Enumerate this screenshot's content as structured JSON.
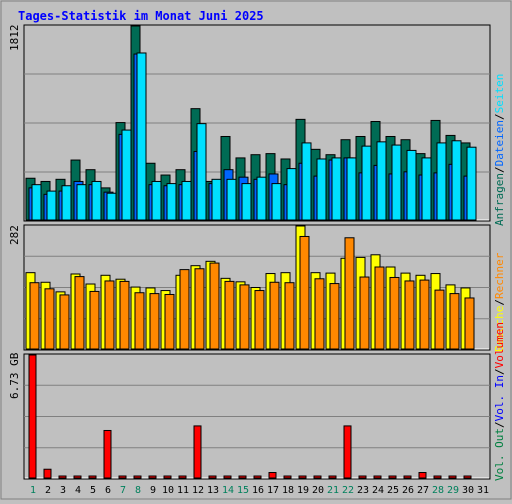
{
  "title": "Tages-Statistik im Monat Juni 2025",
  "axis_max_labels": {
    "top": "1812",
    "middle": "282",
    "bottom": "6.73 GB"
  },
  "right_legend": {
    "top": [
      {
        "text": "Anfragen",
        "color": "#006b54"
      },
      {
        "text": "/",
        "color": "#000000"
      },
      {
        "text": "Dateien",
        "color": "#0066ff"
      },
      {
        "text": "/",
        "color": "#000000"
      },
      {
        "text": "Seiten",
        "color": "#00e0ff"
      }
    ],
    "middle": [
      {
        "text": "Besuche",
        "color": "#ffff00"
      },
      {
        "text": "/",
        "color": "#000000"
      },
      {
        "text": "Rechner",
        "color": "#ff8800"
      }
    ],
    "bottom": [
      {
        "text": "Vol. Out",
        "color": "#008040"
      },
      {
        "text": "/",
        "color": "#000000"
      },
      {
        "text": "Vol. In",
        "color": "#0000ff"
      },
      {
        "text": "/",
        "color": "#000000"
      },
      {
        "text": "Volumen",
        "color": "#ff0000"
      }
    ]
  },
  "colors": {
    "background": "#c0c0c0",
    "title": "#0000ff",
    "weekend_day": "#00805c",
    "weekday": "#000000",
    "grid": "#808080"
  },
  "chart_data": {
    "type": "bar",
    "days": [
      "1",
      "2",
      "3",
      "4",
      "5",
      "6",
      "7",
      "8",
      "9",
      "10",
      "11",
      "12",
      "13",
      "14",
      "15",
      "16",
      "17",
      "18",
      "19",
      "20",
      "21",
      "22",
      "23",
      "24",
      "25",
      "26",
      "27",
      "28",
      "29",
      "30",
      "31"
    ],
    "weekend_days": [
      1,
      7,
      8,
      14,
      15,
      21,
      22,
      28,
      29
    ],
    "panels": [
      {
        "name": "requests",
        "ylim": [
          0,
          1812
        ],
        "series": [
          {
            "name": "Anfragen",
            "color": "#006b54",
            "values": [
              390,
              360,
              380,
              560,
              470,
              300,
              910,
              1812,
              530,
              420,
              470,
              1040,
              360,
              780,
              580,
              610,
              620,
              570,
              940,
              660,
              610,
              750,
              780,
              920,
              780,
              750,
              620,
              930,
              790,
              720,
              null
            ]
          },
          {
            "name": "Dateien",
            "color": "#0066ff",
            "values": [
              300,
              240,
              270,
              360,
              330,
              260,
              800,
              1550,
              330,
              320,
              330,
              640,
              340,
              470,
              400,
              380,
              430,
              330,
              530,
              410,
              560,
              580,
              440,
              510,
              430,
              450,
              420,
              440,
              520,
              410,
              null
            ]
          },
          {
            "name": "Seiten",
            "color": "#00e0ff",
            "values": [
              330,
              270,
              320,
              330,
              360,
              250,
              840,
              1560,
              360,
              340,
              360,
              900,
              380,
              380,
              340,
              400,
              340,
              480,
              720,
              570,
              580,
              580,
              690,
              730,
              700,
              650,
              580,
              720,
              740,
              680,
              null
            ]
          }
        ]
      },
      {
        "name": "visits",
        "ylim": [
          0,
          282
        ],
        "series": [
          {
            "name": "Besuche",
            "color": "#ffff00",
            "values": [
              175,
              153,
              131,
              172,
              149,
              169,
              160,
              142,
              140,
              134,
              169,
              191,
              201,
              162,
              154,
              141,
              173,
              175,
              282,
              175,
              174,
              208,
              210,
              216,
              188,
              174,
              169,
              173,
              147,
              140,
              null
            ]
          },
          {
            "name": "Rechner",
            "color": "#ff8800",
            "values": [
              152,
              138,
              124,
              166,
              132,
              156,
              155,
              129,
              127,
              125,
              182,
              184,
              197,
              155,
              147,
              134,
              153,
              152,
              258,
              161,
              150,
              255,
              165,
              188,
              164,
              156,
              158,
              135,
              127,
              117,
              null
            ]
          }
        ]
      },
      {
        "name": "volume",
        "ylim": [
          0,
          6.73
        ],
        "unit": "GB",
        "series": [
          {
            "name": "Volumen",
            "color": "#ff0000",
            "values": [
              6.73,
              0.48,
              0.04,
              0.04,
              0.04,
              2.6,
              0.04,
              0.04,
              0.04,
              0.04,
              0.04,
              2.85,
              0.04,
              0.04,
              0.04,
              0.04,
              0.3,
              0.04,
              0.04,
              0.04,
              0.04,
              2.85,
              0.04,
              0.04,
              0.04,
              0.04,
              0.3,
              0.04,
              0.04,
              0.04,
              null
            ]
          }
        ]
      }
    ]
  }
}
